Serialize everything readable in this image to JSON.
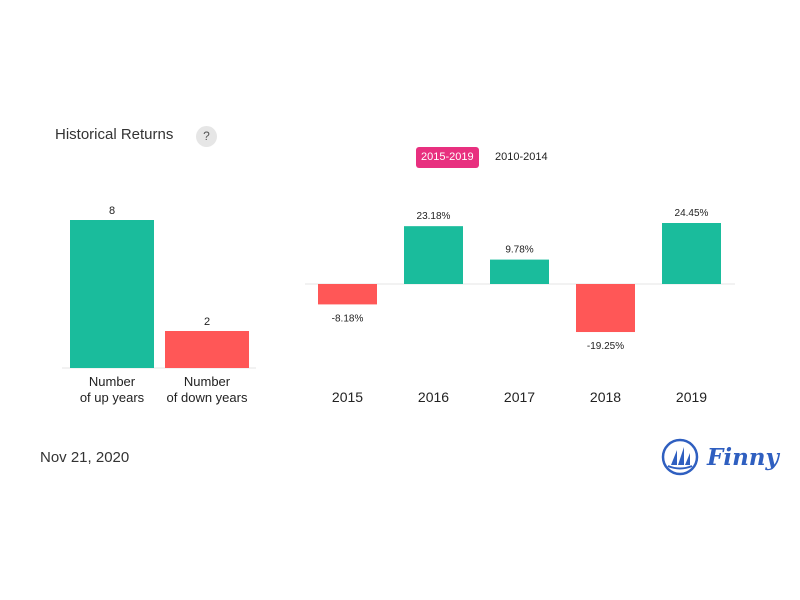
{
  "header": {
    "title": "Historical Returns",
    "help_label": "?"
  },
  "tabs": [
    {
      "label": "2015-2019",
      "active": true
    },
    {
      "label": "2010-2014",
      "active": false
    }
  ],
  "footer": {
    "date": "Nov 21, 2020",
    "brand": "Finny"
  },
  "colors": {
    "positive": "#1abc9c",
    "negative": "#ff5757",
    "accent": "#e8307f",
    "brand": "#2f5fc0"
  },
  "chart_data": [
    {
      "type": "bar",
      "categories": [
        "Number\nof up years",
        "Number\nof down years"
      ],
      "values": [
        8,
        2
      ],
      "labels": [
        "8",
        "2"
      ]
    },
    {
      "type": "bar",
      "categories": [
        "2015",
        "2016",
        "2017",
        "2018",
        "2019"
      ],
      "values": [
        -8.18,
        23.18,
        9.78,
        -19.25,
        24.45
      ],
      "labels": [
        "-8.18%",
        "23.18%",
        "9.78%",
        "-19.25%",
        "24.45%"
      ]
    }
  ]
}
